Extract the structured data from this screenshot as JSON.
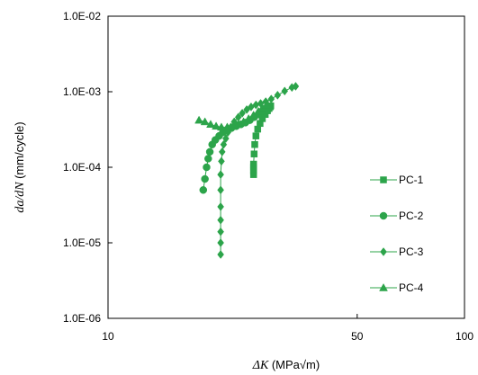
{
  "chart_data": {
    "type": "scatter",
    "xscale": "log",
    "yscale": "log",
    "xlim": [
      10,
      100
    ],
    "ylim": [
      1e-06,
      0.01
    ],
    "xticks": [
      10,
      50,
      100
    ],
    "xtick_labels": [
      "10",
      "50",
      "100"
    ],
    "yticks": [
      1e-06,
      1e-05,
      0.0001,
      0.001,
      0.01
    ],
    "ytick_labels": [
      "1.0E-06",
      "1.0E-05",
      "1.0E-04",
      "1.0E-03",
      "1.0E-02"
    ],
    "xlabel_sym": "ΔK",
    "xlabel_unit": "(MPa√m)",
    "ylabel_sym": "da/dN",
    "ylabel_unit": "(mm/cycle)",
    "grid": false,
    "legend_position": "right",
    "color": "#2ca44a",
    "series": [
      {
        "name": "PC-1",
        "marker": "square",
        "x": [
          25.6,
          25.6,
          25.6,
          25.6,
          25.7,
          25.8,
          26.0,
          26.3,
          26.7,
          27.1,
          27.6,
          28.0,
          28.3,
          28.5,
          28.6
        ],
        "y": [
          8e-05,
          9e-05,
          0.0001,
          0.00011,
          0.00015,
          0.0002,
          0.00026,
          0.00032,
          0.00038,
          0.00044,
          0.0005,
          0.00056,
          0.0006,
          0.00063,
          0.00065
        ]
      },
      {
        "name": "PC-2",
        "marker": "circle",
        "x": [
          18.5,
          18.7,
          18.9,
          19.1,
          19.3,
          19.6,
          20.0,
          20.5,
          21.0,
          21.6,
          22.2,
          22.9,
          23.6,
          24.3,
          25.0,
          25.7,
          26.4,
          27.0,
          27.6,
          28.1
        ],
        "y": [
          5e-05,
          7e-05,
          0.0001,
          0.00013,
          0.00016,
          0.0002,
          0.00023,
          0.00026,
          0.00029,
          0.00031,
          0.00033,
          0.00035,
          0.00037,
          0.00039,
          0.00042,
          0.00046,
          0.0005,
          0.00055,
          0.0006,
          0.00064
        ]
      },
      {
        "name": "PC-3",
        "marker": "diamond",
        "x": [
          20.7,
          20.7,
          20.7,
          20.7,
          20.7,
          20.7,
          20.7,
          20.8,
          20.9,
          21.1,
          21.4,
          21.7,
          22.1,
          22.6,
          23.2,
          23.8,
          24.5,
          25.2,
          26.0,
          26.8,
          27.7,
          28.7,
          29.9,
          31.3,
          32.8,
          33.6
        ],
        "y": [
          7e-06,
          1e-05,
          1.4e-05,
          2e-05,
          3e-05,
          5e-05,
          8e-05,
          0.00012,
          0.00016,
          0.0002,
          0.00024,
          0.00029,
          0.00034,
          0.0004,
          0.00046,
          0.00052,
          0.00058,
          0.00063,
          0.00067,
          0.0007,
          0.00074,
          0.0008,
          0.0009,
          0.00102,
          0.00114,
          0.00118
        ]
      },
      {
        "name": "PC-4",
        "marker": "triangle",
        "x": [
          18.0,
          18.7,
          19.4,
          20.1,
          20.8,
          21.6,
          22.4,
          23.2,
          24.0,
          24.8,
          25.6,
          26.4,
          27.1,
          27.8
        ],
        "y": [
          0.00042,
          0.0004,
          0.00037,
          0.00035,
          0.00034,
          0.00034,
          0.00035,
          0.00037,
          0.0004,
          0.00044,
          0.00049,
          0.00055,
          0.00061,
          0.00066
        ]
      }
    ]
  }
}
